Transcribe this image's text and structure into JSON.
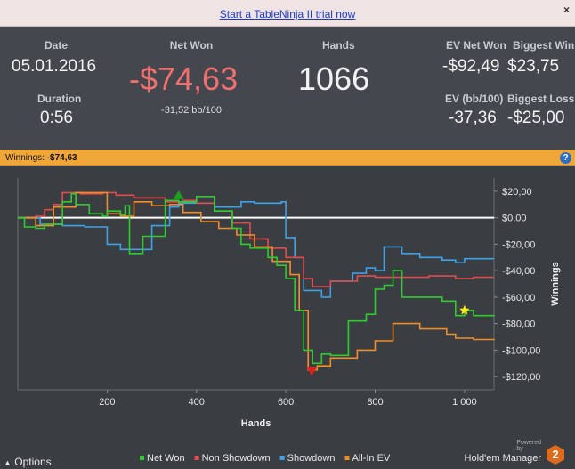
{
  "topbar": {
    "trial_link": "Start a TableNinja II trial now",
    "close": "×"
  },
  "stats": {
    "date_label": "Date",
    "date_value": "05.01.2016",
    "duration_label": "Duration",
    "duration_value": "0:56",
    "net_won_label": "Net Won",
    "net_won_value": "-$74,63",
    "net_won_bb": "-31,52 bb/100",
    "hands_label": "Hands",
    "hands_value": "1066",
    "ev_net_won_label": "EV Net Won",
    "ev_net_won_value": "-$92,49",
    "biggest_win_label": "Biggest Win",
    "biggest_win_value": "$23,75",
    "ev_bb_label": "EV (bb/100)",
    "ev_bb_value": "-37,36",
    "biggest_loss_label": "Biggest Loss",
    "biggest_loss_value": "-$25,00",
    "net_won_color": "#f07070"
  },
  "winbar": {
    "label": "Winnings:",
    "value": "-$74,63",
    "help": "?"
  },
  "footer": {
    "options": "Options",
    "powered": "Powered by",
    "brand": "Hold'em Manager",
    "logo": "2"
  },
  "chart_data": {
    "type": "line",
    "xlabel": "Hands",
    "ylabel": "Winnings",
    "xlim": [
      0,
      1066
    ],
    "ylim": [
      -130,
      30
    ],
    "x_ticks": [
      200,
      400,
      600,
      800,
      1000
    ],
    "x_tick_labels": [
      "200",
      "400",
      "600",
      "800",
      "1 000"
    ],
    "y_ticks": [
      20,
      0,
      -20,
      -40,
      -60,
      -80,
      -100,
      -120
    ],
    "y_tick_labels": [
      "$20,00",
      "$0,00",
      "-$20,00",
      "-$40,00",
      "-$60,00",
      "-$80,00",
      "-$100,00",
      "-$120,00"
    ],
    "series": [
      {
        "name": "Net Won",
        "color": "#2ecc2e",
        "x": [
          0,
          15,
          40,
          60,
          100,
          120,
          130,
          160,
          190,
          200,
          230,
          240,
          250,
          280,
          330,
          360,
          400,
          440,
          480,
          500,
          520,
          560,
          580,
          600,
          620,
          640,
          660,
          680,
          700,
          740,
          780,
          800,
          820,
          840,
          860,
          900,
          950,
          980,
          1000,
          1020,
          1066
        ],
        "y": [
          0,
          -7,
          -8,
          -5,
          12,
          18,
          10,
          3,
          1,
          5,
          2,
          9,
          -27,
          -14,
          13,
          12,
          16,
          5,
          -8,
          -20,
          -23,
          -30,
          -36,
          -46,
          -70,
          -100,
          -110,
          -103,
          -104,
          -78,
          -73,
          -54,
          -51,
          -40,
          -60,
          -60,
          -63,
          -74,
          -70,
          -74,
          -74.63
        ]
      },
      {
        "name": "Non Showdown",
        "color": "#e04c4c",
        "x": [
          0,
          40,
          60,
          80,
          100,
          140,
          190,
          220,
          260,
          330,
          370,
          400,
          440,
          480,
          520,
          560,
          600,
          640,
          660,
          700,
          760,
          800,
          860,
          920,
          980,
          1020,
          1066
        ],
        "y": [
          0,
          1,
          6,
          10,
          19,
          18,
          19,
          17,
          15,
          12,
          13,
          11,
          5,
          -4,
          -16,
          -23,
          -30,
          -46,
          -52,
          -48,
          -44,
          -45,
          -45,
          -44,
          -46,
          -45,
          -45
        ]
      },
      {
        "name": "Showdown",
        "color": "#3fa1e6",
        "x": [
          0,
          50,
          100,
          150,
          200,
          230,
          260,
          300,
          340,
          360,
          400,
          440,
          480,
          500,
          530,
          560,
          590,
          600,
          620,
          640,
          680,
          700,
          750,
          780,
          800,
          820,
          860,
          900,
          950,
          980,
          1000,
          1066
        ],
        "y": [
          0,
          -5,
          -6,
          -7,
          -20,
          -24,
          -24,
          -6,
          8,
          11,
          11,
          8,
          8,
          12,
          11,
          11,
          12,
          -15,
          -30,
          -55,
          -60,
          -48,
          -42,
          -38,
          -40,
          -22,
          -27,
          -30,
          -32,
          -34,
          -31,
          -31
        ]
      },
      {
        "name": "All-In EV",
        "color": "#f08d2a",
        "x": [
          0,
          40,
          80,
          130,
          200,
          230,
          260,
          300,
          340,
          370,
          410,
          450,
          490,
          530,
          570,
          610,
          630,
          650,
          670,
          700,
          760,
          800,
          840,
          900,
          960,
          980,
          1020,
          1066
        ],
        "y": [
          0,
          -6,
          8,
          19,
          3,
          1,
          12,
          9,
          10,
          4,
          -3,
          -8,
          -13,
          -22,
          -33,
          -43,
          -70,
          -115,
          -112,
          -106,
          -100,
          -93,
          -80,
          -84,
          -88,
          -91,
          -92,
          -92.49
        ]
      }
    ],
    "markers": [
      {
        "name": "Biggest Win",
        "x": 360,
        "y": 16,
        "shape": "triangle-up",
        "color": "#1e9e1e"
      },
      {
        "name": "Biggest Loss",
        "x": 658,
        "y": -116,
        "shape": "triangle-down",
        "color": "#e02020"
      },
      {
        "name": "EV Net Won",
        "x": 1000,
        "y": -70,
        "shape": "star",
        "color": "#ffee11"
      }
    ],
    "grid": false,
    "legend_position": "bottom"
  }
}
